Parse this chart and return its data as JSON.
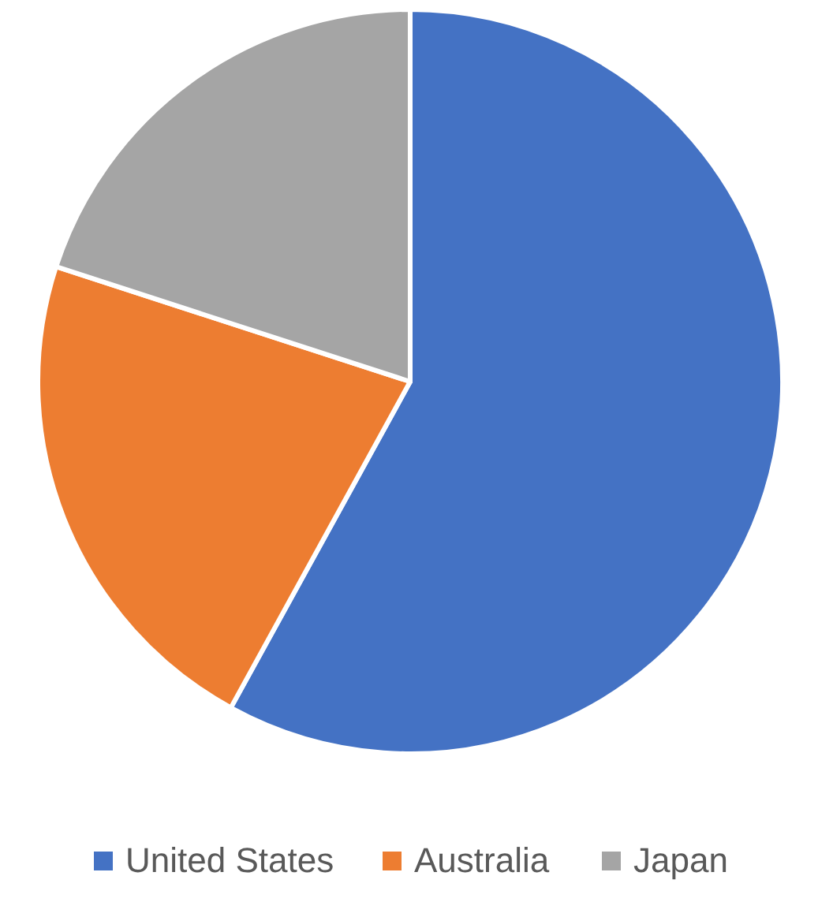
{
  "chart_data": {
    "type": "pie",
    "categories": [
      "United States",
      "Australia",
      "Japan"
    ],
    "values": [
      58,
      22,
      20
    ],
    "colors": [
      "#4472c4",
      "#ed7d31",
      "#a5a5a5"
    ],
    "legend": "bottom"
  }
}
